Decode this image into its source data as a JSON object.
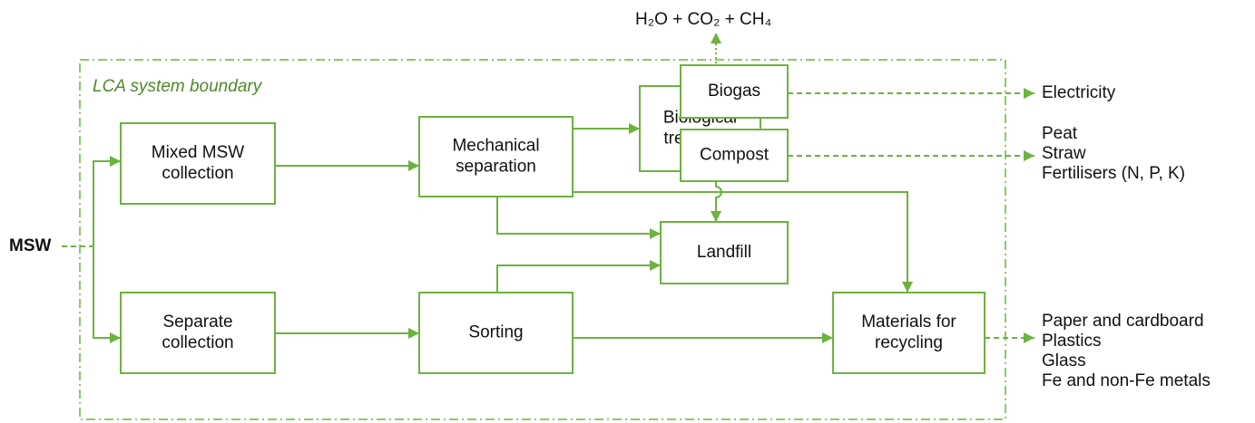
{
  "boundary_label": "LCA system boundary",
  "input": "MSW",
  "emissions": "H₂O + CO₂ + CH₄",
  "nodes": [
    {
      "id": "mixed",
      "label": [
        "Mixed MSW",
        "collection"
      ]
    },
    {
      "id": "separate",
      "label": [
        "Separate",
        "collection"
      ]
    },
    {
      "id": "mech",
      "label": [
        "Mechanical",
        "separation"
      ]
    },
    {
      "id": "sorting",
      "label": [
        "Sorting"
      ]
    },
    {
      "id": "bio",
      "label": [
        "Biological",
        "treatment"
      ]
    },
    {
      "id": "biogas",
      "label": [
        "Biogas"
      ]
    },
    {
      "id": "compost",
      "label": [
        "Compost"
      ]
    },
    {
      "id": "landfill",
      "label": [
        "Landfill"
      ]
    },
    {
      "id": "materials",
      "label": [
        "Materials for",
        "recycling"
      ]
    }
  ],
  "outputs": {
    "biogas": [
      "Electricity"
    ],
    "compost": [
      "Peat",
      "Straw",
      "Fertilisers (N, P, K)"
    ],
    "materials": [
      "Paper and cardboard",
      "Plastics",
      "Glass",
      "Fe and non-Fe metals"
    ]
  }
}
